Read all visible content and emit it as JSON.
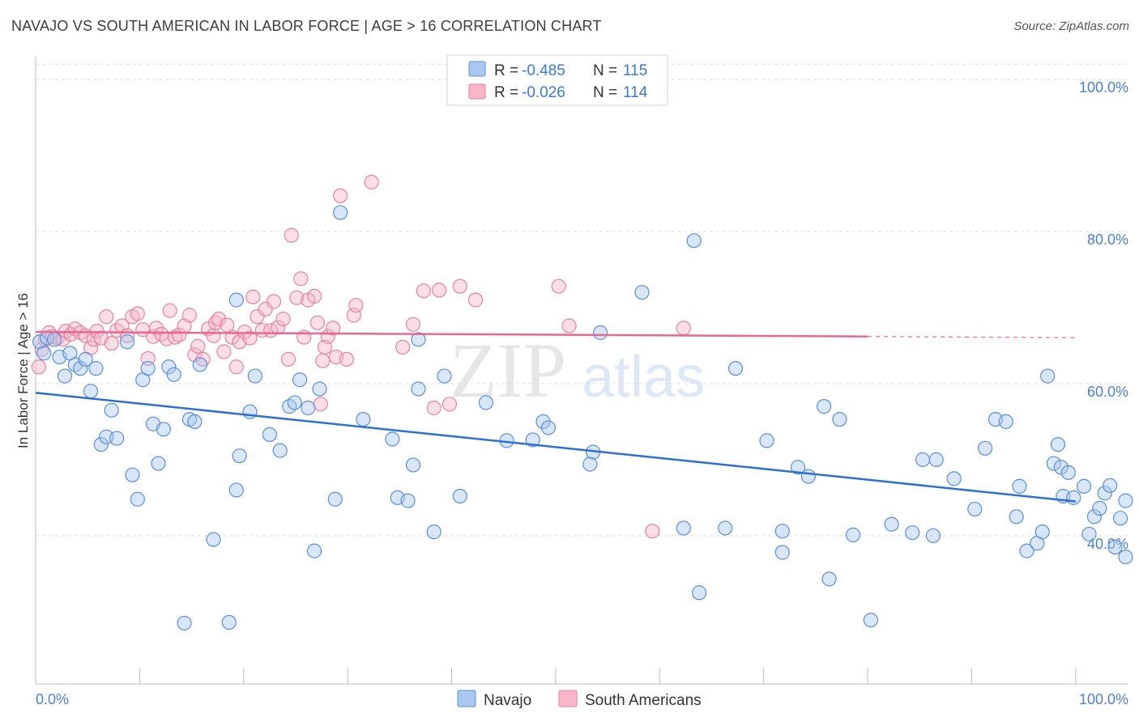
{
  "header": {
    "title": "NAVAJO VS SOUTH AMERICAN IN LABOR FORCE | AGE > 16 CORRELATION CHART",
    "source": "Source: ZipAtlas.com"
  },
  "watermark": {
    "part1": "ZIP",
    "part2": "atlas"
  },
  "legend": {
    "r_label": "R =",
    "n_label": "N =",
    "rows": [
      {
        "series": "Navajo",
        "r": "-0.485",
        "n": "115",
        "color": "#a8c8f0"
      },
      {
        "series": "South Americans",
        "r": "-0.026",
        "n": "114",
        "color": "#f7b6c8"
      }
    ]
  },
  "bottom_legend": [
    {
      "label": "Navajo",
      "color": "#a8c8f0"
    },
    {
      "label": "South Americans",
      "color": "#f7b6c8"
    }
  ],
  "colors": {
    "navajo_fill": "#a8c8f0",
    "navajo_stroke": "#5b8fd6",
    "navajo_line": "#2f6fd0",
    "sa_fill": "#f7b6c8",
    "sa_stroke": "#e683a3",
    "sa_line": "#e8698f",
    "grid": "#dcdcdc",
    "tick_label": "#4a7fd4"
  },
  "chart_data": {
    "type": "scatter",
    "title": "NAVAJO VS SOUTH AMERICAN IN LABOR FORCE | AGE > 16 CORRELATION CHART",
    "xlabel": "",
    "ylabel": "In Labor Force | Age > 16",
    "xlim": [
      0,
      105
    ],
    "ylim": [
      20.5,
      103
    ],
    "x_tick_labels": [
      "0.0%",
      "100.0%"
    ],
    "y_ticks": [
      {
        "value": 100,
        "label": "100.0%"
      },
      {
        "value": 80,
        "label": "80.0%"
      },
      {
        "value": 60,
        "label": "60.0%"
      },
      {
        "value": 40,
        "label": "40.0%"
      }
    ],
    "grid": true,
    "series": [
      {
        "name": "Navajo",
        "r": -0.485,
        "n": 115,
        "trend": {
          "x": [
            0,
            100
          ],
          "y": [
            58.8,
            44.5
          ],
          "dashed_to": null
        },
        "points": [
          [
            0.4,
            65.5
          ],
          [
            0.8,
            64
          ],
          [
            1.1,
            66
          ],
          [
            1.8,
            65.8
          ],
          [
            2.3,
            63.5
          ],
          [
            2.8,
            61
          ],
          [
            3.3,
            64
          ],
          [
            3.8,
            62.5
          ],
          [
            4.3,
            62
          ],
          [
            4.8,
            63.2
          ],
          [
            5.3,
            59
          ],
          [
            5.8,
            62
          ],
          [
            6.3,
            52
          ],
          [
            6.8,
            53
          ],
          [
            7.3,
            56.5
          ],
          [
            7.8,
            52.8
          ],
          [
            8.8,
            65.5
          ],
          [
            9.3,
            48
          ],
          [
            9.8,
            44.8
          ],
          [
            10.3,
            60.5
          ],
          [
            10.8,
            62
          ],
          [
            11.3,
            54.7
          ],
          [
            11.8,
            49.5
          ],
          [
            12.3,
            54
          ],
          [
            12.8,
            62.2
          ],
          [
            13.3,
            61.2
          ],
          [
            14.3,
            28.5
          ],
          [
            14.8,
            55.3
          ],
          [
            15.8,
            62.5
          ],
          [
            15.3,
            55
          ],
          [
            17.1,
            39.5
          ],
          [
            18.6,
            28.6
          ],
          [
            19.3,
            71
          ],
          [
            19.3,
            46
          ],
          [
            19.6,
            50.5
          ],
          [
            20.6,
            56.3
          ],
          [
            21.1,
            61
          ],
          [
            22.5,
            53.3
          ],
          [
            23.5,
            51.2
          ],
          [
            24.4,
            57
          ],
          [
            24.9,
            57.5
          ],
          [
            25.4,
            60.5
          ],
          [
            26.2,
            56.8
          ],
          [
            26.8,
            38
          ],
          [
            27.3,
            59.3
          ],
          [
            28.8,
            44.8
          ],
          [
            29.3,
            82.5
          ],
          [
            31.5,
            55.3
          ],
          [
            34.3,
            52.7
          ],
          [
            34.8,
            45
          ],
          [
            35.8,
            44.6
          ],
          [
            36.3,
            49.3
          ],
          [
            36.8,
            59.3
          ],
          [
            36.8,
            65.8
          ],
          [
            38.3,
            40.5
          ],
          [
            39.3,
            61
          ],
          [
            40.8,
            45.2
          ],
          [
            43.3,
            57.5
          ],
          [
            45.3,
            52.5
          ],
          [
            47.8,
            52.6
          ],
          [
            48.8,
            55
          ],
          [
            49.3,
            54.2
          ],
          [
            53.3,
            49.4
          ],
          [
            53.6,
            51
          ],
          [
            54.3,
            66.7
          ],
          [
            58.3,
            72
          ],
          [
            63.3,
            78.8
          ],
          [
            67.3,
            62
          ],
          [
            62.3,
            41
          ],
          [
            63.8,
            32.5
          ],
          [
            66.3,
            41
          ],
          [
            70.3,
            52.5
          ],
          [
            71.8,
            37.8
          ],
          [
            71.8,
            40.6
          ],
          [
            73.3,
            49
          ],
          [
            74.3,
            47.8
          ],
          [
            75.8,
            57
          ],
          [
            76.3,
            34.3
          ],
          [
            77.3,
            55.3
          ],
          [
            78.6,
            40.1
          ],
          [
            80.3,
            28.9
          ],
          [
            82.3,
            41.5
          ],
          [
            84.3,
            40.4
          ],
          [
            85.3,
            50
          ],
          [
            86.3,
            40
          ],
          [
            86.6,
            50
          ],
          [
            88.3,
            47.5
          ],
          [
            90.3,
            43.5
          ],
          [
            91.3,
            51.5
          ],
          [
            92.3,
            55.3
          ],
          [
            93.3,
            55
          ],
          [
            94.3,
            42.5
          ],
          [
            94.6,
            46.5
          ],
          [
            95.3,
            38
          ],
          [
            96.3,
            39
          ],
          [
            96.8,
            40.5
          ],
          [
            97.3,
            61
          ],
          [
            98.3,
            52
          ],
          [
            97.9,
            49.5
          ],
          [
            98.6,
            49
          ],
          [
            98.8,
            45.2
          ],
          [
            99.3,
            48.3
          ],
          [
            99.8,
            45
          ],
          [
            100.8,
            46.5
          ],
          [
            101.3,
            40.2
          ],
          [
            101.8,
            42.5
          ],
          [
            102.3,
            43.6
          ],
          [
            102.8,
            45.6
          ],
          [
            103.3,
            46.6
          ],
          [
            103.8,
            38.5
          ],
          [
            104.3,
            42.3
          ],
          [
            104.8,
            37.2
          ],
          [
            104.8,
            44.6
          ]
        ]
      },
      {
        "name": "South Americans",
        "r": -0.026,
        "n": 114,
        "trend": {
          "x": [
            0,
            80
          ],
          "y": [
            66.8,
            66.2
          ],
          "dashed_to": [
            80,
            100,
            66.2,
            66.05
          ]
        },
        "points": [
          [
            0.3,
            62.2
          ],
          [
            0.6,
            64.5
          ],
          [
            0.9,
            65.8
          ],
          [
            1.3,
            66.7
          ],
          [
            1.6,
            66.2
          ],
          [
            2.1,
            66
          ],
          [
            2.6,
            65.8
          ],
          [
            2.9,
            66.9
          ],
          [
            3.4,
            66.5
          ],
          [
            3.8,
            67.2
          ],
          [
            4.3,
            66.7
          ],
          [
            4.8,
            66.3
          ],
          [
            5.3,
            64.7
          ],
          [
            5.6,
            65.8
          ],
          [
            5.9,
            66.9
          ],
          [
            6.3,
            66
          ],
          [
            6.8,
            68.8
          ],
          [
            7.3,
            65.3
          ],
          [
            7.8,
            67
          ],
          [
            8.3,
            67.6
          ],
          [
            8.8,
            66.3
          ],
          [
            9.3,
            68.8
          ],
          [
            9.8,
            69.2
          ],
          [
            10.3,
            67.1
          ],
          [
            10.8,
            63.3
          ],
          [
            11.3,
            66.2
          ],
          [
            11.6,
            67.3
          ],
          [
            12.1,
            66.5
          ],
          [
            12.6,
            65.9
          ],
          [
            12.9,
            69.6
          ],
          [
            13.4,
            66.1
          ],
          [
            13.8,
            66.4
          ],
          [
            14.3,
            67.6
          ],
          [
            14.8,
            69
          ],
          [
            15.3,
            63.8
          ],
          [
            15.6,
            64.9
          ],
          [
            16.1,
            63.2
          ],
          [
            16.6,
            67.2
          ],
          [
            17.1,
            66.3
          ],
          [
            17.3,
            68
          ],
          [
            17.6,
            68.5
          ],
          [
            18.1,
            64.2
          ],
          [
            18.4,
            67.7
          ],
          [
            18.9,
            66.1
          ],
          [
            19.3,
            62.2
          ],
          [
            19.6,
            65.5
          ],
          [
            20.1,
            66.8
          ],
          [
            20.6,
            66
          ],
          [
            20.9,
            71.4
          ],
          [
            21.3,
            68.8
          ],
          [
            21.8,
            67
          ],
          [
            22.1,
            69.8
          ],
          [
            22.6,
            67
          ],
          [
            22.9,
            70.8
          ],
          [
            23.3,
            67.4
          ],
          [
            23.8,
            68.5
          ],
          [
            24.3,
            63.2
          ],
          [
            24.6,
            79.5
          ],
          [
            25.1,
            71.3
          ],
          [
            25.5,
            73.8
          ],
          [
            25.8,
            66.1
          ],
          [
            26.2,
            71
          ],
          [
            26.8,
            71.5
          ],
          [
            27.1,
            68
          ],
          [
            27.4,
            57.3
          ],
          [
            27.6,
            63
          ],
          [
            27.8,
            64.8
          ],
          [
            28.1,
            66.2
          ],
          [
            28.6,
            67.3
          ],
          [
            28.9,
            63.5
          ],
          [
            29.3,
            84.7
          ],
          [
            29.9,
            63.2
          ],
          [
            30.6,
            69
          ],
          [
            30.8,
            70.3
          ],
          [
            32.3,
            86.5
          ],
          [
            35.3,
            64.8
          ],
          [
            36.3,
            67.8
          ],
          [
            37.3,
            72.2
          ],
          [
            38.3,
            56.8
          ],
          [
            38.8,
            72.3
          ],
          [
            39.8,
            57.3
          ],
          [
            40.8,
            72.8
          ],
          [
            42.3,
            71
          ],
          [
            50.3,
            72.8
          ],
          [
            51.3,
            67.6
          ],
          [
            59.3,
            40.6
          ],
          [
            62.3,
            67.3
          ]
        ]
      }
    ]
  }
}
